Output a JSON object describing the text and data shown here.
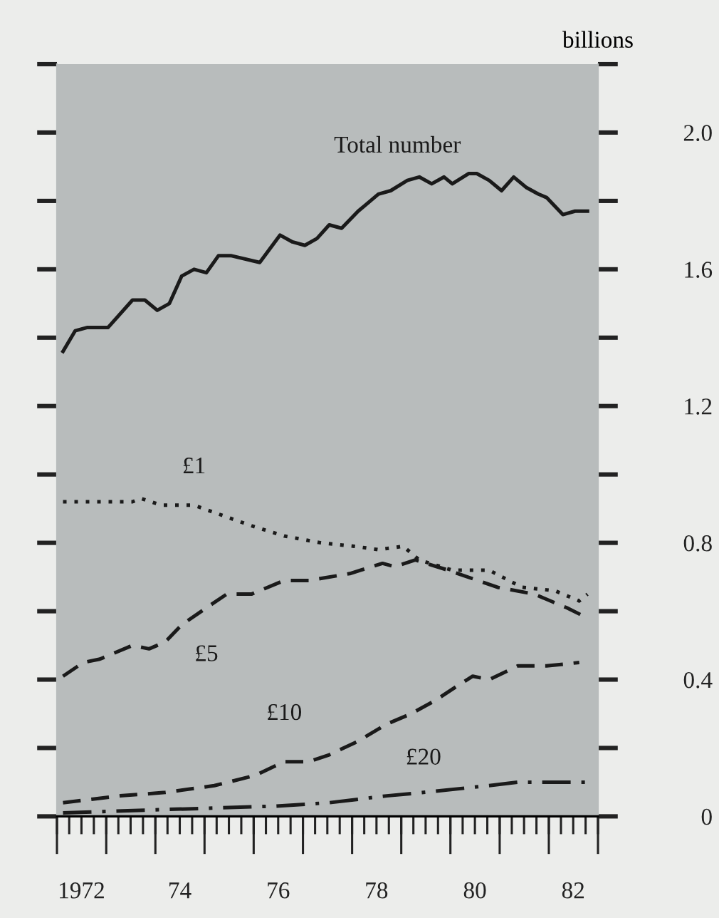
{
  "chart_data": {
    "type": "line",
    "ylabel": "billions",
    "xlim": [
      "1972-01-01",
      "1983-01-01"
    ],
    "xticks": [
      {
        "value": "1972-01-01",
        "label": null
      },
      {
        "value": "1972-04-01",
        "label": null
      },
      {
        "value": "1972-07-01",
        "label": "1972"
      },
      {
        "value": "1972-10-01",
        "label": null
      },
      {
        "value": "1973-01-01",
        "label": null
      },
      {
        "value": "1973-04-01",
        "label": null
      },
      {
        "value": "1973-07-01",
        "label": null
      },
      {
        "value": "1973-10-01",
        "label": null
      },
      {
        "value": "1974-01-01",
        "label": null
      },
      {
        "value": "1974-04-01",
        "label": null
      },
      {
        "value": "1974-07-01",
        "label": "74"
      },
      {
        "value": "1974-10-01",
        "label": null
      },
      {
        "value": "1975-01-01",
        "label": null
      },
      {
        "value": "1975-04-01",
        "label": null
      },
      {
        "value": "1975-07-01",
        "label": null
      },
      {
        "value": "1975-10-01",
        "label": null
      },
      {
        "value": "1976-01-01",
        "label": null
      },
      {
        "value": "1976-04-01",
        "label": null
      },
      {
        "value": "1976-07-01",
        "label": "76"
      },
      {
        "value": "1976-10-01",
        "label": null
      },
      {
        "value": "1977-01-01",
        "label": null
      },
      {
        "value": "1977-04-01",
        "label": null
      },
      {
        "value": "1977-07-01",
        "label": null
      },
      {
        "value": "1977-10-01",
        "label": null
      },
      {
        "value": "1978-01-01",
        "label": null
      },
      {
        "value": "1978-04-01",
        "label": null
      },
      {
        "value": "1978-07-01",
        "label": "78"
      },
      {
        "value": "1978-10-01",
        "label": null
      },
      {
        "value": "1979-01-01",
        "label": null
      },
      {
        "value": "1979-04-01",
        "label": null
      },
      {
        "value": "1979-07-01",
        "label": null
      },
      {
        "value": "1979-10-01",
        "label": null
      },
      {
        "value": "1980-01-01",
        "label": null
      },
      {
        "value": "1980-04-01",
        "label": null
      },
      {
        "value": "1980-07-01",
        "label": "80"
      },
      {
        "value": "1980-10-01",
        "label": null
      },
      {
        "value": "1981-01-01",
        "label": null
      },
      {
        "value": "1981-04-01",
        "label": null
      },
      {
        "value": "1981-07-01",
        "label": null
      },
      {
        "value": "1981-10-01",
        "label": null
      },
      {
        "value": "1982-01-01",
        "label": null
      },
      {
        "value": "1982-04-01",
        "label": null
      },
      {
        "value": "1982-07-01",
        "label": "82"
      },
      {
        "value": "1982-10-01",
        "label": null
      },
      {
        "value": "1983-01-01",
        "label": null
      }
    ],
    "ylim": [
      0,
      2.2
    ],
    "yticks": [
      0,
      {
        "value": 0.2,
        "label": null
      },
      0.4,
      {
        "value": 0.6,
        "label": null
      },
      0.8,
      {
        "value": 1.0,
        "label": null
      },
      1.2,
      {
        "value": 1.4,
        "label": null
      },
      1.6,
      {
        "value": 1.8,
        "label": null
      },
      {
        "value": 2.0,
        "label": "2.0"
      },
      {
        "value": 2.2,
        "label": null
      }
    ],
    "grid": false,
    "legend": false,
    "series": [
      {
        "name": "Total number",
        "color": "#1a1a1a",
        "line_style": "solid",
        "x": [
          "1972-02",
          "1972-05",
          "1972-08",
          "1973-01",
          "1973-07",
          "1973-10",
          "1974-01",
          "1974-04",
          "1974-07",
          "1974-10",
          "1975-01",
          "1975-04",
          "1975-07",
          "1976-02",
          "1976-07",
          "1976-10",
          "1977-01",
          "1977-04",
          "1977-07",
          "1977-10",
          "1978-02",
          "1978-07",
          "1978-10",
          "1979-02",
          "1979-05",
          "1979-08",
          "1979-11",
          "1980-01",
          "1980-05",
          "1980-07",
          "1980-10",
          "1981-01",
          "1981-04",
          "1981-07",
          "1981-10",
          "1981-12",
          "1982-04",
          "1982-07",
          "1982-10"
        ],
        "values": [
          1.36,
          1.42,
          1.43,
          1.43,
          1.51,
          1.51,
          1.48,
          1.5,
          1.58,
          1.6,
          1.59,
          1.64,
          1.64,
          1.62,
          1.7,
          1.68,
          1.67,
          1.69,
          1.73,
          1.72,
          1.77,
          1.82,
          1.83,
          1.86,
          1.87,
          1.85,
          1.87,
          1.85,
          1.88,
          1.88,
          1.86,
          1.83,
          1.87,
          1.84,
          1.82,
          1.81,
          1.76,
          1.77,
          1.77
        ]
      },
      {
        "name": "£1",
        "color": "#1a1a1a",
        "line_style": "dotted",
        "x": [
          "1972-02",
          "1972-10",
          "1973-07",
          "1973-09",
          "1974-02",
          "1974-10",
          "1975-05",
          "1975-12",
          "1976-08",
          "1977-05",
          "1978-01",
          "1978-07",
          "1979-01",
          "1979-05",
          "1980-01",
          "1980-10",
          "1981-06",
          "1982-02",
          "1982-08",
          "1982-10"
        ],
        "values": [
          0.92,
          0.92,
          0.92,
          0.93,
          0.91,
          0.91,
          0.88,
          0.85,
          0.82,
          0.8,
          0.79,
          0.78,
          0.79,
          0.75,
          0.72,
          0.72,
          0.67,
          0.66,
          0.63,
          0.65
        ]
      },
      {
        "name": "£5",
        "color": "#1a1a1a",
        "line_style": "dashed",
        "x": [
          "1972-02",
          "1972-07",
          "1972-11",
          "1973-07",
          "1973-11",
          "1974-03",
          "1974-07",
          "1975-01",
          "1975-06",
          "1975-12",
          "1976-08",
          "1977-02",
          "1977-12",
          "1978-08",
          "1978-11",
          "1979-04",
          "1979-12",
          "1980-12",
          "1981-09",
          "1982-05",
          "1982-10"
        ],
        "values": [
          0.41,
          0.45,
          0.46,
          0.5,
          0.49,
          0.51,
          0.56,
          0.61,
          0.65,
          0.65,
          0.69,
          0.69,
          0.71,
          0.74,
          0.73,
          0.75,
          0.72,
          0.67,
          0.65,
          0.61,
          0.58
        ]
      },
      {
        "name": "£10",
        "color": "#1a1a1a",
        "line_style": "dashed",
        "x": [
          "1972-02",
          "1973-04",
          "1974-03",
          "1975-03",
          "1976-01",
          "1976-08",
          "1977-02",
          "1977-07",
          "1978-02",
          "1978-09",
          "1979-03",
          "1979-09",
          "1980-02",
          "1980-06",
          "1980-10",
          "1981-05",
          "1981-12",
          "1982-08"
        ],
        "values": [
          0.04,
          0.06,
          0.07,
          0.09,
          0.12,
          0.16,
          0.16,
          0.18,
          0.22,
          0.27,
          0.3,
          0.34,
          0.38,
          0.41,
          0.4,
          0.44,
          0.44,
          0.45
        ]
      },
      {
        "name": "£20",
        "color": "#1a1a1a",
        "line_style": "dashdot",
        "x": [
          "1972-02",
          "1974-03",
          "1976-06",
          "1977-07",
          "1978-09",
          "1979-06",
          "1980-10",
          "1981-05",
          "1982-10"
        ],
        "values": [
          0.01,
          0.02,
          0.03,
          0.04,
          0.06,
          0.07,
          0.09,
          0.1,
          0.1
        ]
      }
    ]
  }
}
